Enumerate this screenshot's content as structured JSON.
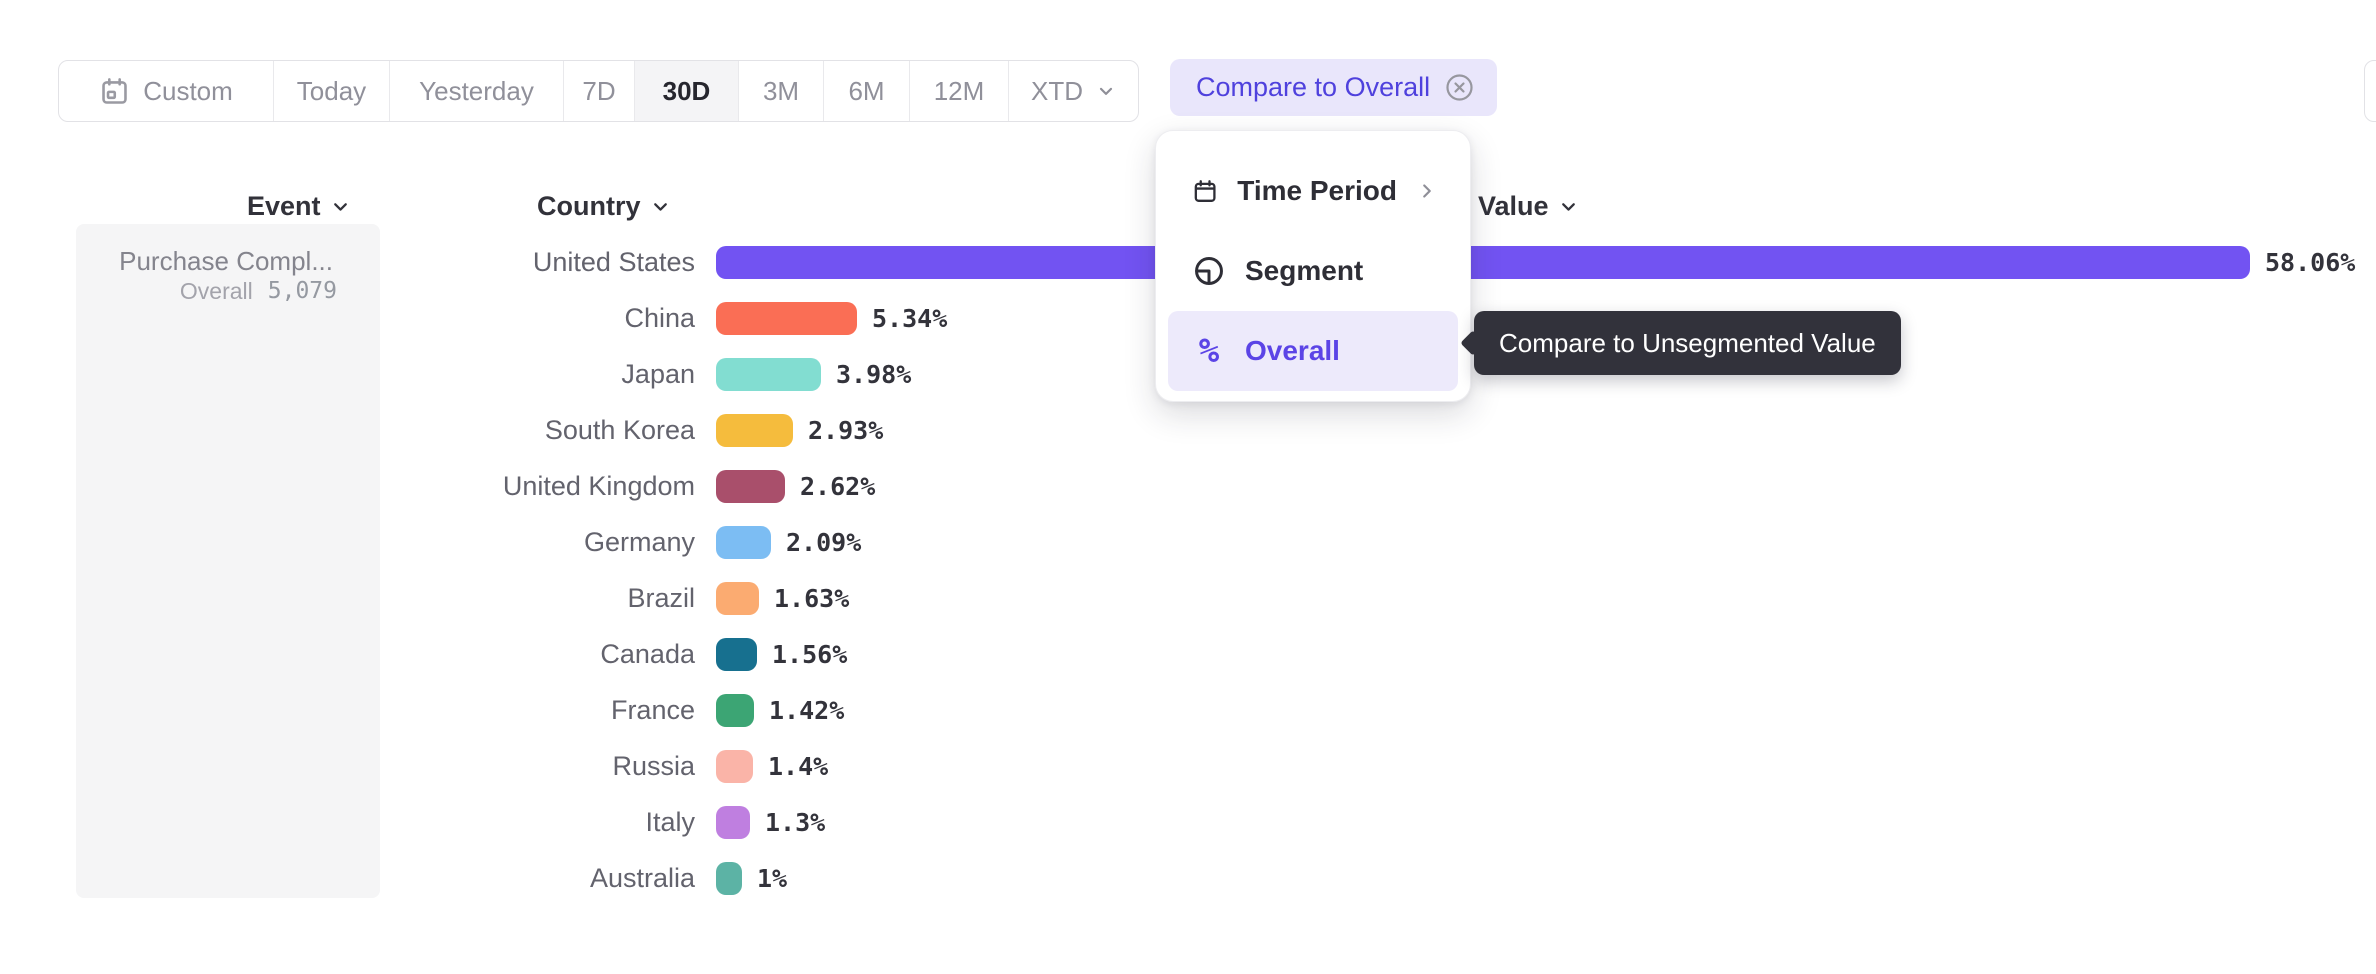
{
  "toolbar": {
    "time_ranges": [
      {
        "label": "Custom",
        "icon": "calendar-icon",
        "active": false
      },
      {
        "label": "Today",
        "active": false
      },
      {
        "label": "Yesterday",
        "active": false
      },
      {
        "label": "7D",
        "active": false
      },
      {
        "label": "30D",
        "active": true
      },
      {
        "label": "3M",
        "active": false
      },
      {
        "label": "6M",
        "active": false
      },
      {
        "label": "12M",
        "active": false
      },
      {
        "label": "XTD",
        "icon_right": "chevron-down-icon",
        "active": false
      }
    ],
    "compare_chip": {
      "label": "Compare to Overall",
      "close_icon": "circled-x-icon"
    }
  },
  "dropdown_menu": {
    "items": [
      {
        "label": "Time Period",
        "icon": "calendar-icon",
        "has_submenu": true,
        "selected": false
      },
      {
        "label": "Segment",
        "icon": "segment-icon",
        "has_submenu": false,
        "selected": false
      },
      {
        "label": "Overall",
        "icon": "percent-icon",
        "has_submenu": false,
        "selected": true
      }
    ]
  },
  "tooltip": {
    "text": "Compare to Unsegmented Value"
  },
  "columns": {
    "event": "Event",
    "country": "Country",
    "value": "Value"
  },
  "event_panel": {
    "name": "Purchase Compl...",
    "overall_label": "Overall",
    "overall_value": "5,079"
  },
  "chart_data": {
    "type": "bar",
    "orientation": "horizontal",
    "categories": [
      "United States",
      "China",
      "Japan",
      "South Korea",
      "United Kingdom",
      "Germany",
      "Brazil",
      "Canada",
      "France",
      "Russia",
      "Italy",
      "Australia"
    ],
    "values": [
      58.06,
      5.34,
      3.98,
      2.93,
      2.62,
      2.09,
      1.63,
      1.56,
      1.42,
      1.4,
      1.3,
      1
    ],
    "value_labels": [
      "58.06%",
      "5.34%",
      "3.98%",
      "2.93%",
      "2.62%",
      "2.09%",
      "1.63%",
      "1.56%",
      "1.42%",
      "1.4%",
      "1.3%",
      "1%"
    ],
    "colors": [
      "#7253f2",
      "#fa6e55",
      "#82ddd1",
      "#f5bc3d",
      "#a94f6b",
      "#7cbdf3",
      "#fbab71",
      "#17708f",
      "#3ca574",
      "#fab4a8",
      "#bf7fe0",
      "#5cb3a5"
    ],
    "max_value": 58.06,
    "xlim": [
      0,
      58.06
    ],
    "grid": false,
    "legend": false,
    "accent_color": "#7253f2",
    "label_color": "#63636d",
    "value_color": "#33333b"
  }
}
